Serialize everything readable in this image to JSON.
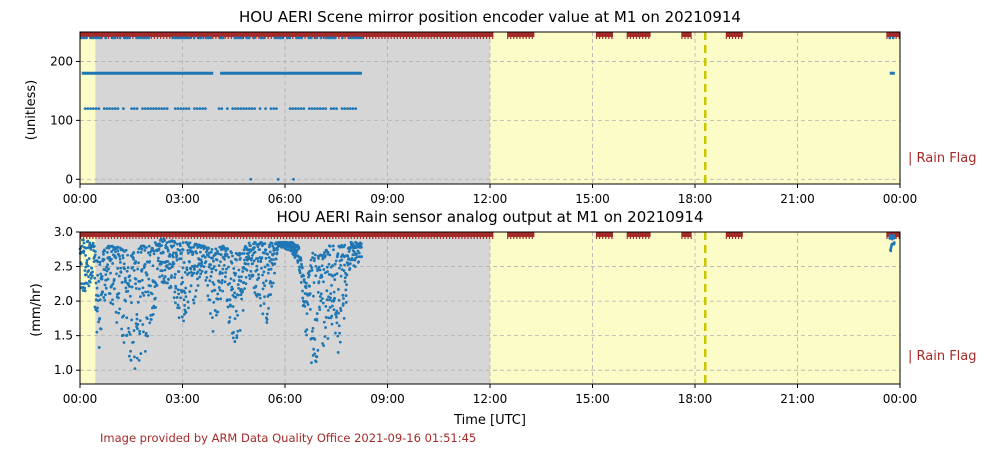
{
  "figure": {
    "credit": "Image provided by ARM Data Quality Office 2021-09-16 01:51:45",
    "xlabel": "Time [UTC]"
  },
  "colors": {
    "marker": "#1f77b4",
    "flag_bar": "#a52a2a",
    "missing_shade": "#d6d6d6",
    "flag_shade": "#fcfcc8",
    "dashed_line": "#c8c800",
    "grid": "#b0b0b0"
  },
  "chart_data": [
    {
      "type": "scatter",
      "title": "HOU AERI Scene mirror position encoder value at M1 on 20210914",
      "ylabel": "(unitless)",
      "side_label": "| Rain Flag",
      "xlim": [
        0,
        24
      ],
      "ylim": [
        -8,
        250
      ],
      "x_ticks": [
        "00:00",
        "03:00",
        "06:00",
        "09:00",
        "12:00",
        "15:00",
        "18:00",
        "21:00",
        "00:00"
      ],
      "y_ticks": [
        0,
        100,
        200
      ],
      "grid": true,
      "missing_ranges": [
        [
          0.45,
          12.0
        ]
      ],
      "rain_flag_ranges": [
        [
          0,
          0.45
        ],
        [
          12.0,
          24
        ]
      ],
      "dashed_vline_x": 18.3,
      "flag_bar_segments": [
        [
          0,
          12.1
        ],
        [
          12.5,
          13.3
        ],
        [
          15.1,
          15.6
        ],
        [
          16.0,
          16.7
        ],
        [
          17.6,
          17.9
        ],
        [
          18.9,
          19.4
        ],
        [
          23.6,
          24
        ]
      ],
      "series": [
        {
          "values_level_180": {
            "y": 180,
            "segments": [
              [
                0.05,
                3.9
              ],
              [
                4.1,
                8.25
              ],
              [
                23.7,
                23.85
              ]
            ]
          },
          "values_level_120": {
            "y": 120,
            "x_start": 0.15,
            "x_end": 8.1,
            "spacing": 0.08,
            "gaps": [
              [
                3.7,
                4.0
              ],
              [
                5.8,
                6.0
              ]
            ]
          },
          "values_level_240": {
            "y": 240,
            "x_start": 0.05,
            "x_end": 8.3,
            "spacing": 0.07,
            "gaps": [
              [
                2.2,
                2.6
              ],
              [
                4.2,
                4.5
              ]
            ],
            "extra": [
              23.7,
              23.8
            ]
          },
          "values_level_0": {
            "y": 0,
            "x": [
              5.0,
              5.8,
              6.25
            ]
          }
        }
      ]
    },
    {
      "type": "scatter",
      "title": "HOU AERI Rain sensor analog output at M1 on 20210914",
      "ylabel": "(mm/hr)",
      "side_label": "| Rain Flag",
      "xlim": [
        0,
        24
      ],
      "ylim": [
        0.8,
        3.0
      ],
      "x_ticks": [
        "00:00",
        "03:00",
        "06:00",
        "09:00",
        "12:00",
        "15:00",
        "18:00",
        "21:00",
        "00:00"
      ],
      "y_ticks": [
        "1.0",
        "1.5",
        "2.0",
        "2.5",
        "3.0"
      ],
      "grid": true,
      "missing_ranges": [
        [
          0.45,
          12.0
        ]
      ],
      "rain_flag_ranges": [
        [
          0,
          0.45
        ],
        [
          12.0,
          24
        ]
      ],
      "dashed_vline_x": 18.3,
      "flag_bar_segments": [
        [
          0,
          12.1
        ],
        [
          12.5,
          13.3
        ],
        [
          15.1,
          15.6
        ],
        [
          16.0,
          16.7
        ],
        [
          17.6,
          17.9
        ],
        [
          18.9,
          19.4
        ],
        [
          23.6,
          24
        ]
      ],
      "series": [
        {
          "envelope": [
            [
              0.0,
              2.9,
              2.1
            ],
            [
              0.4,
              2.85,
              2.2
            ],
            [
              0.5,
              2.6,
              1.05
            ],
            [
              0.8,
              2.8,
              2.3
            ],
            [
              1.0,
              2.8,
              1.6
            ],
            [
              1.3,
              2.75,
              1.3
            ],
            [
              1.6,
              2.7,
              0.9
            ],
            [
              1.8,
              2.8,
              1.1
            ],
            [
              2.1,
              2.8,
              1.4
            ],
            [
              2.3,
              2.9,
              2.3
            ],
            [
              2.6,
              2.9,
              2.2
            ],
            [
              2.9,
              2.85,
              1.7
            ],
            [
              3.2,
              2.85,
              1.6
            ],
            [
              3.6,
              2.8,
              2.4
            ],
            [
              3.9,
              2.75,
              1.5
            ],
            [
              4.2,
              2.8,
              2.1
            ],
            [
              4.5,
              2.7,
              1.3
            ],
            [
              4.75,
              2.7,
              1.6
            ],
            [
              4.9,
              2.85,
              2.4
            ],
            [
              5.2,
              2.85,
              1.9
            ],
            [
              5.5,
              2.85,
              1.6
            ],
            [
              5.8,
              2.85,
              2.8
            ],
            [
              6.2,
              2.85,
              2.7
            ],
            [
              6.4,
              2.8,
              2.5
            ],
            [
              6.6,
              2.2,
              1.5
            ],
            [
              6.8,
              2.7,
              1.0
            ],
            [
              7.1,
              2.7,
              1.3
            ],
            [
              7.3,
              2.8,
              1.5
            ],
            [
              7.6,
              2.8,
              1.2
            ],
            [
              7.9,
              2.85,
              2.4
            ],
            [
              8.25,
              2.85,
              2.6
            ],
            [
              23.7,
              2.95,
              2.7
            ],
            [
              23.85,
              2.95,
              2.8
            ]
          ]
        }
      ]
    }
  ]
}
